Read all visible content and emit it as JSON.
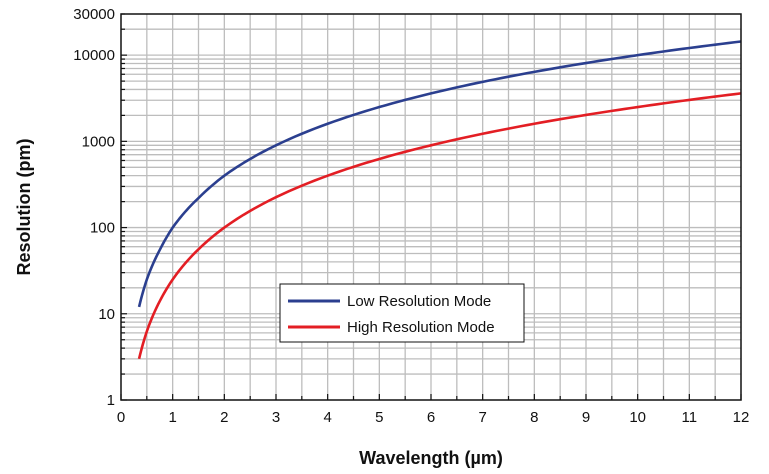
{
  "chart_data": {
    "type": "line",
    "xlabel": "Wavelength (µm)",
    "ylabel": "Resolution (pm)",
    "xlim": [
      0,
      12
    ],
    "ylim": [
      1,
      30000
    ],
    "yscale": "log",
    "x_ticks": [
      "0",
      "1",
      "2",
      "3",
      "4",
      "5",
      "6",
      "7",
      "8",
      "9",
      "10",
      "11",
      "12"
    ],
    "y_ticks": [
      {
        "value": 1,
        "label": "1"
      },
      {
        "value": 10,
        "label": "10"
      },
      {
        "value": 100,
        "label": "100"
      },
      {
        "value": 1000,
        "label": "1000"
      },
      {
        "value": 10000,
        "label": "10000"
      },
      {
        "value": 30000,
        "label": "30000"
      }
    ],
    "grid": true,
    "legend_position": "lower-center",
    "series": [
      {
        "name": "Low Resolution Mode",
        "color": "#2b3f8f",
        "x": [
          0.35,
          0.5,
          0.75,
          1,
          1.5,
          2,
          3,
          4,
          5,
          6,
          7,
          8,
          9,
          10,
          11,
          12
        ],
        "y": [
          12,
          25,
          55,
          100,
          220,
          400,
          900,
          1600,
          2500,
          3600,
          4900,
          6400,
          8100,
          10000,
          12100,
          14400
        ]
      },
      {
        "name": "High Resolution Mode",
        "color": "#e31e24",
        "x": [
          0.35,
          0.5,
          0.75,
          1,
          1.5,
          2,
          3,
          4,
          5,
          6,
          7,
          8,
          9,
          10,
          11,
          12
        ],
        "y": [
          3,
          6.25,
          14,
          25,
          56,
          100,
          225,
          400,
          625,
          900,
          1225,
          1600,
          2025,
          2500,
          3025,
          3600
        ]
      }
    ]
  }
}
